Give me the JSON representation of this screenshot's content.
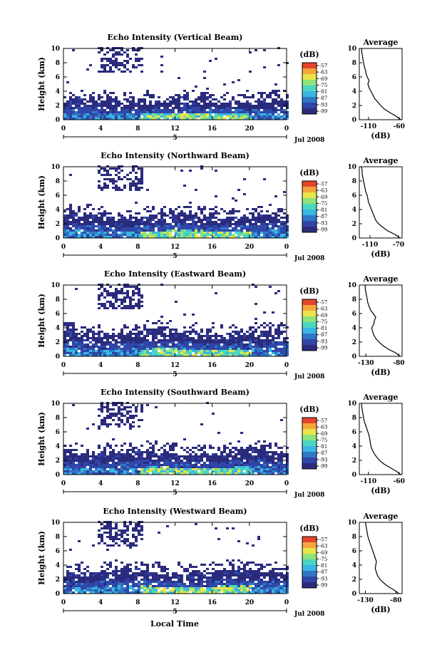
{
  "figure": {
    "xlabel": "Local Time",
    "date_label": "Jul 2008",
    "day_label": "5",
    "colorbar_unit": "(dB)",
    "colorbar_ticks": [
      "-57",
      "-63",
      "-69",
      "-75",
      "-81",
      "-87",
      "-93",
      "-99"
    ],
    "colormap": [
      "#2b2b7e",
      "#3046a8",
      "#2f78c8",
      "#39b7e0",
      "#4ad6c0",
      "#8ee37a",
      "#e8e44a",
      "#f6a53a",
      "#e4452c"
    ],
    "avg_title": "Average",
    "avg_xlabel": "(dB)"
  },
  "chart_data": [
    {
      "type": "heatmap",
      "title": "Echo Intensity (Vertical Beam)",
      "ylabel": "Height (km)",
      "x_ticks": [
        "0",
        "4",
        "8",
        "12",
        "16",
        "20",
        "0"
      ],
      "y_ticks": [
        "0",
        "2",
        "4",
        "6",
        "8",
        "10"
      ],
      "xlim": [
        0,
        24
      ],
      "ylim": [
        0,
        10
      ],
      "layer_top_km": 2.6,
      "upper_patches": true,
      "average": {
        "x_ticks": [
          "-110",
          "-60"
        ],
        "xlim": [
          -125,
          -55
        ],
        "heights": [
          0,
          0.5,
          1,
          1.5,
          2,
          2.5,
          3,
          3.5,
          4,
          4.5,
          5,
          5.5,
          6,
          6.5,
          7,
          7.5,
          8,
          8.5,
          9,
          9.5,
          10
        ],
        "values": [
          -57,
          -65,
          -75,
          -84,
          -90,
          -95,
          -100,
          -103,
          -106,
          -109,
          -111,
          -109,
          -112,
          -114,
          -115,
          -117,
          -118,
          -119,
          -120,
          -121,
          -121
        ]
      }
    },
    {
      "type": "heatmap",
      "title": "Echo Intensity (Northward Beam)",
      "ylabel": "Height (km)",
      "x_ticks": [
        "0",
        "4",
        "8",
        "12",
        "16",
        "20",
        "0"
      ],
      "y_ticks": [
        "0",
        "2",
        "4",
        "6",
        "8",
        "10"
      ],
      "xlim": [
        0,
        24
      ],
      "ylim": [
        0,
        10
      ],
      "layer_top_km": 3.0,
      "upper_patches": true,
      "average": {
        "x_ticks": [
          "-110",
          "-70"
        ],
        "xlim": [
          -125,
          -65
        ],
        "heights": [
          0,
          0.5,
          1,
          1.5,
          2,
          2.5,
          3,
          3.5,
          4,
          4.5,
          5,
          5.5,
          6,
          6.5,
          7,
          7.5,
          8,
          8.5,
          9,
          9.5,
          10
        ],
        "values": [
          -68,
          -75,
          -85,
          -92,
          -98,
          -102,
          -104,
          -106,
          -108,
          -110,
          -112,
          -113,
          -114,
          -116,
          -117,
          -118,
          -119,
          -120,
          -121,
          -121,
          -122
        ]
      }
    },
    {
      "type": "heatmap",
      "title": "Echo Intensity (Eastward Beam)",
      "ylabel": "Height (km)",
      "x_ticks": [
        "0",
        "4",
        "8",
        "12",
        "16",
        "20",
        "0"
      ],
      "y_ticks": [
        "0",
        "2",
        "4",
        "6",
        "8",
        "10"
      ],
      "xlim": [
        0,
        24
      ],
      "ylim": [
        0,
        10
      ],
      "layer_top_km": 3.2,
      "upper_patches": true,
      "average": {
        "x_ticks": [
          "-130",
          "-80"
        ],
        "xlim": [
          -140,
          -75
        ],
        "heights": [
          0,
          0.5,
          1,
          1.5,
          2,
          2.5,
          3,
          3.5,
          4,
          4.5,
          5,
          5.5,
          6,
          6.5,
          7,
          7.5,
          8,
          8.5,
          9,
          9.5,
          10
        ],
        "values": [
          -78,
          -85,
          -96,
          -104,
          -110,
          -115,
          -118,
          -120,
          -121,
          -118,
          -117,
          -115,
          -119,
          -123,
          -125,
          -127,
          -128,
          -129,
          -130,
          -131,
          -131
        ]
      }
    },
    {
      "type": "heatmap",
      "title": "Echo Intensity (Southward Beam)",
      "ylabel": "Height (km)",
      "x_ticks": [
        "0",
        "4",
        "8",
        "12",
        "16",
        "20",
        "0"
      ],
      "y_ticks": [
        "0",
        "2",
        "4",
        "6",
        "8",
        "10"
      ],
      "xlim": [
        0,
        24
      ],
      "ylim": [
        0,
        10
      ],
      "layer_top_km": 3.0,
      "upper_patches": true,
      "average": {
        "x_ticks": [
          "-110",
          "-60"
        ],
        "xlim": [
          -125,
          -55
        ],
        "heights": [
          0,
          0.5,
          1,
          1.5,
          2,
          2.5,
          3,
          3.5,
          4,
          4.5,
          5,
          5.5,
          6,
          6.5,
          7,
          7.5,
          8,
          8.5,
          9,
          9.5,
          10
        ],
        "values": [
          -57,
          -65,
          -75,
          -85,
          -92,
          -97,
          -101,
          -104,
          -106,
          -107,
          -108,
          -109,
          -111,
          -113,
          -115,
          -117,
          -118,
          -119,
          -120,
          -121,
          -121
        ]
      }
    },
    {
      "type": "heatmap",
      "title": "Echo Intensity (Westward Beam)",
      "ylabel": "Height (km)",
      "x_ticks": [
        "0",
        "4",
        "8",
        "12",
        "16",
        "20",
        "0"
      ],
      "y_ticks": [
        "0",
        "2",
        "4",
        "6",
        "8",
        "10"
      ],
      "xlim": [
        0,
        24
      ],
      "ylim": [
        0,
        10
      ],
      "layer_top_km": 3.0,
      "upper_patches": true,
      "average": {
        "x_ticks": [
          "-130",
          "-80"
        ],
        "xlim": [
          -140,
          -70
        ],
        "heights": [
          0,
          0.5,
          1,
          1.5,
          2,
          2.5,
          3,
          3.5,
          4,
          4.5,
          5,
          5.5,
          6,
          6.5,
          7,
          7.5,
          8,
          8.5,
          9,
          9.5,
          10
        ],
        "values": [
          -75,
          -83,
          -93,
          -100,
          -106,
          -110,
          -112,
          -114,
          -113,
          -112,
          -114,
          -116,
          -118,
          -120,
          -122,
          -124,
          -126,
          -127,
          -128,
          -129,
          -130
        ]
      }
    }
  ]
}
